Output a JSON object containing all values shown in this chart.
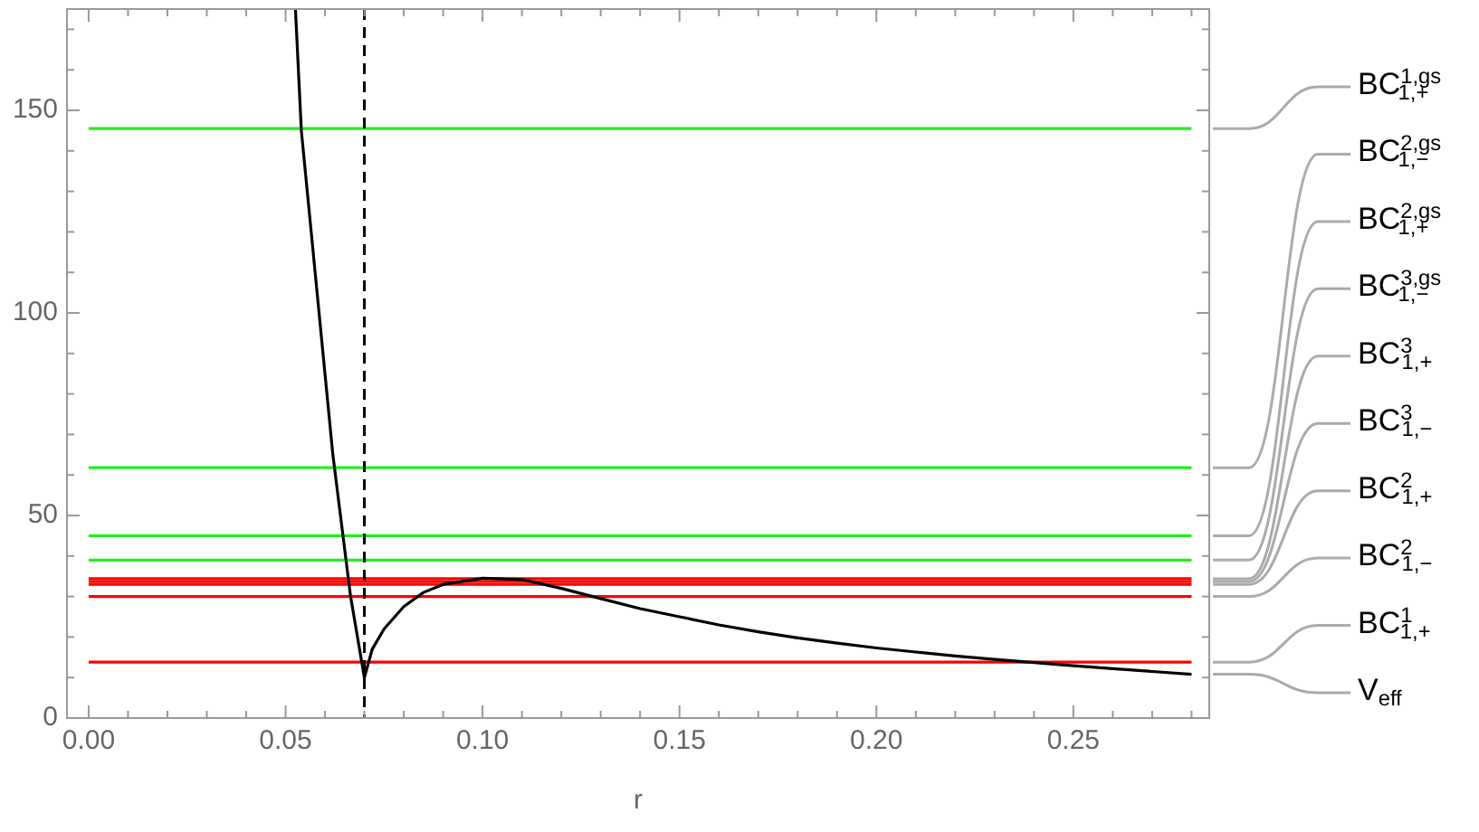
{
  "chart_data": {
    "type": "line",
    "xlabel": "r",
    "xlim": [
      -0.0055,
      0.2845
    ],
    "ylim": [
      0,
      175
    ],
    "xticks": [
      {
        "value": 0,
        "label": "0.00"
      },
      {
        "value": 0.01,
        "label": null
      },
      {
        "value": 0.02,
        "label": null
      },
      {
        "value": 0.03,
        "label": null
      },
      {
        "value": 0.04,
        "label": null
      },
      {
        "value": 0.05,
        "label": "0.05"
      },
      {
        "value": 0.06,
        "label": null
      },
      {
        "value": 0.07,
        "label": null
      },
      {
        "value": 0.08,
        "label": null
      },
      {
        "value": 0.09,
        "label": null
      },
      {
        "value": 0.1,
        "label": "0.10"
      },
      {
        "value": 0.11,
        "label": null
      },
      {
        "value": 0.12,
        "label": null
      },
      {
        "value": 0.13,
        "label": null
      },
      {
        "value": 0.14,
        "label": null
      },
      {
        "value": 0.15,
        "label": "0.15"
      },
      {
        "value": 0.16,
        "label": null
      },
      {
        "value": 0.17,
        "label": null
      },
      {
        "value": 0.18,
        "label": null
      },
      {
        "value": 0.19,
        "label": null
      },
      {
        "value": 0.2,
        "label": "0.20"
      },
      {
        "value": 0.21,
        "label": null
      },
      {
        "value": 0.22,
        "label": null
      },
      {
        "value": 0.23,
        "label": null
      },
      {
        "value": 0.24,
        "label": null
      },
      {
        "value": 0.25,
        "label": "0.25"
      },
      {
        "value": 0.26,
        "label": null
      },
      {
        "value": 0.27,
        "label": null
      },
      {
        "value": 0.28,
        "label": null
      }
    ],
    "yticks": [
      0,
      {
        "value": 10,
        "label": null
      },
      {
        "value": 20,
        "label": null
      },
      {
        "value": 30,
        "label": null
      },
      {
        "value": 40,
        "label": null
      },
      50,
      {
        "value": 60,
        "label": null
      },
      {
        "value": 70,
        "label": null
      },
      {
        "value": 80,
        "label": null
      },
      {
        "value": 90,
        "label": null
      },
      100,
      {
        "value": 110,
        "label": null
      },
      {
        "value": 120,
        "label": null
      },
      {
        "value": 130,
        "label": null
      },
      {
        "value": 140,
        "label": null
      },
      150,
      {
        "value": 160,
        "label": null
      },
      {
        "value": 170,
        "label": null
      }
    ],
    "grid": false,
    "legend": "right",
    "marker": "none",
    "line_style": "solid",
    "ref_lines": [
      {
        "axis": "x",
        "value": 0.07,
        "label": null,
        "color": "#000000",
        "line_style": "dashed"
      }
    ],
    "series": [
      {
        "name": "BC$^{1,gs}$$_{1,+}$",
        "color": "#22ee22",
        "x": [
          0,
          0.28
        ],
        "values": [
          145.5,
          145.5
        ]
      },
      {
        "name": "BC$^{2,gs}$$_{1,−}$",
        "color": "#22ee22",
        "x": [
          0,
          0.28
        ],
        "values": [
          61.8,
          61.8
        ]
      },
      {
        "name": "BC$^{2,gs}$$_{1,+}$",
        "color": "#22ee22",
        "x": [
          0,
          0.28
        ],
        "values": [
          45,
          45
        ]
      },
      {
        "name": "BC$^{3,gs}$$_{1,−}$",
        "color": "#22ee22",
        "x": [
          0,
          0.28
        ],
        "values": [
          39,
          39
        ]
      },
      {
        "name": "BC$^{3}$$_{1,+}$",
        "color": "#ff0000",
        "x": [
          0,
          0.28
        ],
        "values": [
          34.4,
          34.4
        ]
      },
      {
        "name": "BC$^{3}$$_{1,−}$",
        "color": "#ff0000",
        "x": [
          0,
          0.28
        ],
        "values": [
          33.7,
          33.7
        ]
      },
      {
        "name": "BC$^{2}$$_{1,+}$",
        "color": "#ff0000",
        "x": [
          0,
          0.28
        ],
        "values": [
          33,
          33
        ]
      },
      {
        "name": "BC$^{2}$$_{1,−}$",
        "color": "#ff0000",
        "x": [
          0,
          0.28
        ],
        "values": [
          30,
          30
        ]
      },
      {
        "name": "BC$^{1}$$_{1,+}$",
        "color": "#ff0000",
        "x": [
          0,
          0.28
        ],
        "values": [
          13.8,
          13.8
        ]
      },
      {
        "name": "V$_{eff}$",
        "color": "#000000",
        "x": [
          0.0525,
          0.054,
          0.058,
          0.062,
          0.0665,
          0.07,
          0.072,
          0.075,
          0.08,
          0.085,
          0.09,
          0.1,
          0.11,
          0.12,
          0.13,
          0.14,
          0.15,
          0.16,
          0.17,
          0.18,
          0.19,
          0.2,
          0.21,
          0.22,
          0.23,
          0.24,
          0.25,
          0.26,
          0.27,
          0.28
        ],
        "values": [
          175,
          145,
          105,
          65,
          30,
          10,
          17,
          22,
          27.5,
          31,
          33,
          34.5,
          34.2,
          32,
          29.5,
          27,
          25,
          23,
          21.3,
          19.8,
          18.5,
          17.3,
          16.3,
          15.3,
          14.5,
          13.7,
          12.9,
          12.2,
          11.5,
          10.8
        ]
      }
    ]
  }
}
